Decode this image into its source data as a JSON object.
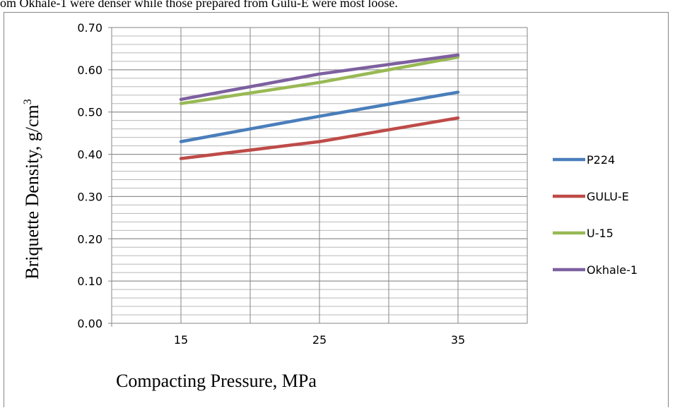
{
  "header_text": "om Okhale-1 were denser while those prepared from Gulu-E were most loose.",
  "chart_data": {
    "type": "line",
    "title": "",
    "xlabel": "Compacting Pressure, MPa",
    "ylabel": "Briquette Density, g/cm",
    "ylabel_sup": "3",
    "x_ticks": [
      15,
      25,
      35
    ],
    "xlim": [
      10,
      40
    ],
    "ylim": [
      0,
      0.7
    ],
    "y_ticks": [
      "0.00",
      "0.10",
      "0.20",
      "0.30",
      "0.40",
      "0.50",
      "0.60",
      "0.70"
    ],
    "y_minor_step": 0.02,
    "x_minor_step": 5,
    "grid": true,
    "legend_position": "right",
    "x": [
      15,
      25,
      35
    ],
    "series": [
      {
        "name": "P224",
        "values": [
          0.43,
          0.49,
          0.547
        ],
        "color": "#4a7ebb"
      },
      {
        "name": "GULU-E",
        "values": [
          0.39,
          0.43,
          0.486
        ],
        "color": "#be4b48"
      },
      {
        "name": "U-15",
        "values": [
          0.52,
          0.57,
          0.63
        ],
        "color": "#98b954"
      },
      {
        "name": "Okhale-1",
        "values": [
          0.53,
          0.59,
          0.635
        ],
        "color": "#7d60a0"
      }
    ]
  }
}
